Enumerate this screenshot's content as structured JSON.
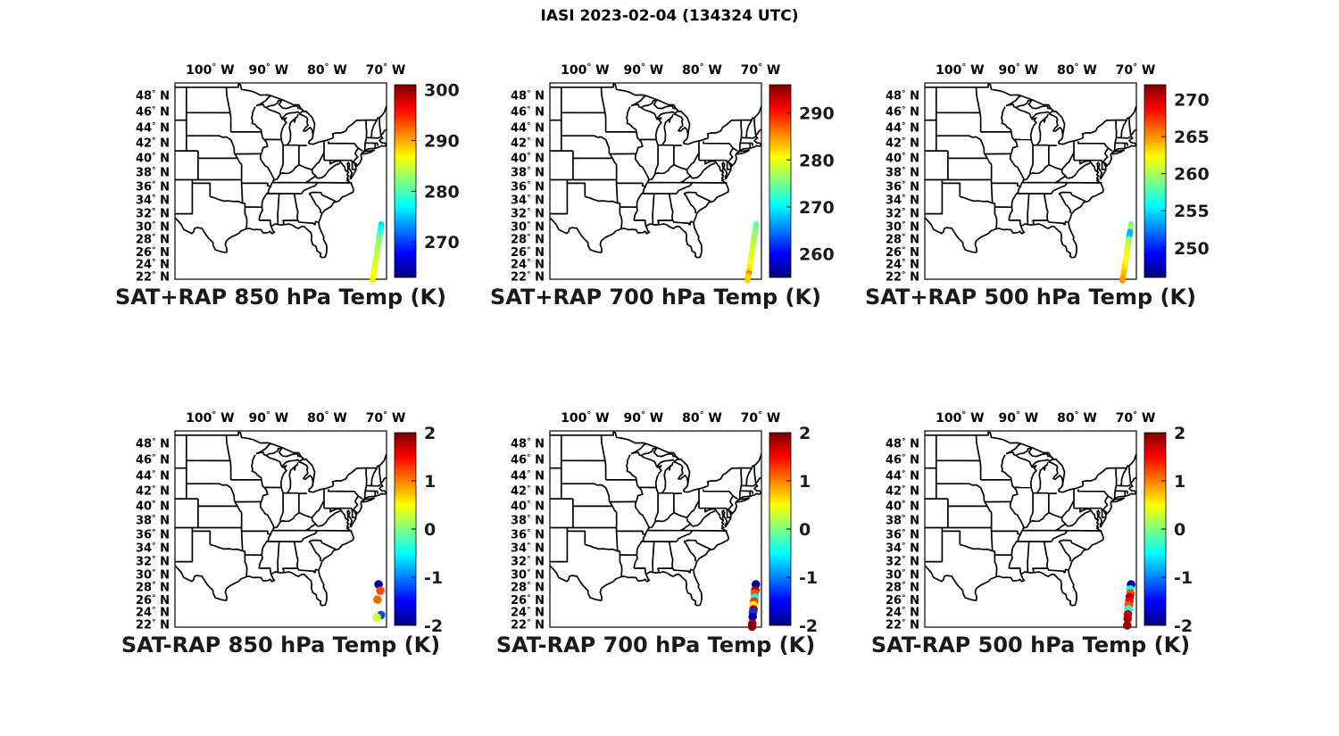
{
  "header": {
    "suptitle": "IASI 2023-02-04 (134324 UTC)"
  },
  "axes": {
    "lon_tick_labels": [
      "100° W",
      "90° W",
      "80° W",
      "70° W"
    ],
    "lon_tick_values": [
      -100,
      -90,
      -80,
      -70
    ],
    "lat_tick_labels": [
      "48° N",
      "46° N",
      "44° N",
      "42° N",
      "40° N",
      "38° N",
      "36° N",
      "34° N",
      "32° N",
      "30° N",
      "28° N",
      "26° N",
      "24° N",
      "22° N"
    ],
    "lat_tick_values": [
      48,
      46,
      44,
      42,
      40,
      38,
      36,
      34,
      32,
      30,
      28,
      26,
      24,
      22
    ],
    "lon_range": [
      -106,
      -69.85
    ],
    "lat_range": [
      21.6,
      49.5
    ]
  },
  "colors": {
    "background": "#ffffff",
    "line": "#000000",
    "colormap": "jet"
  },
  "chart_data": [
    {
      "type": "scatter",
      "title": "SAT+RAP 850 hPa Temp (K)",
      "colorbar": {
        "min": 263,
        "max": 301,
        "ticks": [
          270,
          280,
          290,
          300
        ]
      },
      "points": [
        [
          -70.75,
          30.4,
          276
        ],
        [
          -70.8,
          30.01,
          276.5
        ],
        [
          -70.88,
          29.62,
          277
        ],
        [
          -70.93,
          29.23,
          278.5
        ],
        [
          -71.01,
          28.83,
          280
        ],
        [
          -71.11,
          28.44,
          281
        ],
        [
          -71.14,
          28.05,
          282
        ],
        [
          -71.17,
          27.66,
          282.5
        ],
        [
          -71.29,
          27.27,
          283
        ],
        [
          -71.34,
          26.88,
          283.5
        ],
        [
          -71.37,
          26.48,
          283.5
        ],
        [
          -71.48,
          26.09,
          284
        ],
        [
          -71.53,
          25.7,
          284
        ],
        [
          -71.56,
          25.31,
          284.5
        ],
        [
          -71.68,
          24.92,
          285
        ],
        [
          -71.71,
          24.53,
          285
        ],
        [
          -71.83,
          24.13,
          285.5
        ],
        [
          -71.86,
          23.74,
          285.5
        ],
        [
          -71.89,
          23.35,
          286
        ],
        [
          -71.99,
          22.96,
          286
        ],
        [
          -72.0,
          22.57,
          286.5
        ],
        [
          -72.12,
          22.18,
          287
        ],
        [
          -72.21,
          21.78,
          287
        ],
        [
          -72.23,
          21.39,
          287.5
        ]
      ]
    },
    {
      "type": "scatter",
      "title": "SAT+RAP 700 hPa Temp (K)",
      "colorbar": {
        "min": 255,
        "max": 296,
        "ticks": [
          260,
          270,
          280,
          290
        ]
      },
      "points": [
        [
          -70.75,
          30.4,
          274
        ],
        [
          -70.8,
          30.01,
          274.5
        ],
        [
          -70.88,
          29.62,
          275
        ],
        [
          -70.93,
          29.23,
          275.5
        ],
        [
          -71.01,
          28.83,
          276
        ],
        [
          -71.11,
          28.44,
          276.5
        ],
        [
          -71.14,
          28.05,
          277
        ],
        [
          -71.17,
          27.66,
          277.5
        ],
        [
          -71.29,
          27.27,
          278
        ],
        [
          -71.34,
          26.88,
          278
        ],
        [
          -71.37,
          26.48,
          278.5
        ],
        [
          -71.48,
          26.09,
          279
        ],
        [
          -71.53,
          25.7,
          279
        ],
        [
          -71.56,
          25.31,
          279.5
        ],
        [
          -71.68,
          24.92,
          280
        ],
        [
          -71.71,
          24.53,
          280
        ],
        [
          -71.83,
          24.13,
          280.5
        ],
        [
          -71.86,
          23.74,
          281
        ],
        [
          -71.89,
          23.35,
          281.5
        ],
        [
          -71.99,
          22.96,
          282
        ],
        [
          -72.0,
          22.57,
          286.5
        ],
        [
          -72.12,
          22.18,
          282.5
        ],
        [
          -72.21,
          21.78,
          282
        ],
        [
          -72.23,
          21.39,
          282.5
        ]
      ]
    },
    {
      "type": "scatter",
      "title": "SAT+RAP 500 hPa Temp (K)",
      "colorbar": {
        "min": 246,
        "max": 272,
        "ticks": [
          250,
          255,
          260,
          265,
          270
        ]
      },
      "points": [
        [
          -70.75,
          30.4,
          259
        ],
        [
          -70.8,
          30.01,
          259.5
        ],
        [
          -70.88,
          29.62,
          260
        ],
        [
          -70.93,
          29.23,
          254
        ],
        [
          -71.01,
          28.83,
          253.5
        ],
        [
          -71.11,
          28.44,
          254.5
        ],
        [
          -71.14,
          28.05,
          259
        ],
        [
          -71.17,
          27.66,
          260
        ],
        [
          -71.29,
          27.27,
          260.5
        ],
        [
          -71.34,
          26.88,
          261
        ],
        [
          -71.37,
          26.48,
          261
        ],
        [
          -71.48,
          26.09,
          261.5
        ],
        [
          -71.53,
          25.7,
          261.5
        ],
        [
          -71.56,
          25.31,
          262
        ],
        [
          -71.68,
          24.92,
          262
        ],
        [
          -71.71,
          24.53,
          262.5
        ],
        [
          -71.83,
          24.13,
          262.5
        ],
        [
          -71.86,
          23.74,
          263
        ],
        [
          -71.89,
          23.35,
          263
        ],
        [
          -71.99,
          22.96,
          263.5
        ],
        [
          -72.0,
          22.57,
          264
        ],
        [
          -72.12,
          22.18,
          264
        ],
        [
          -72.21,
          21.78,
          264.5
        ],
        [
          -72.23,
          21.39,
          265
        ]
      ]
    },
    {
      "type": "scatter",
      "title": "SAT-RAP 850 hPa Temp (K)",
      "colorbar": {
        "min": -2,
        "max": 2,
        "ticks": [
          -2,
          -1,
          0,
          1,
          2
        ]
      },
      "points": [
        [
          -71.2,
          28.5,
          -1.9
        ],
        [
          -70.9,
          27.5,
          1.2
        ],
        [
          -71.4,
          26.1,
          1.1
        ],
        [
          -70.8,
          23.6,
          -1.2
        ],
        [
          -71.5,
          23.2,
          0.3
        ]
      ]
    },
    {
      "type": "scatter",
      "title": "SAT-RAP 700 hPa Temp (K)",
      "colorbar": {
        "min": -2,
        "max": 2,
        "ticks": [
          -2,
          -1,
          0,
          1,
          2
        ]
      },
      "points": [
        [
          -70.8,
          28.5,
          -1.9
        ],
        [
          -70.9,
          27.6,
          1.8
        ],
        [
          -71.0,
          27.1,
          1.2
        ],
        [
          -71.0,
          26.4,
          -0.5
        ],
        [
          -71.1,
          25.8,
          1.3
        ],
        [
          -71.2,
          25.2,
          0.6
        ],
        [
          -71.2,
          24.5,
          1.9
        ],
        [
          -71.3,
          24.0,
          -1.3
        ],
        [
          -71.35,
          23.3,
          -1.8
        ],
        [
          -71.4,
          22.2,
          1.9
        ],
        [
          -71.45,
          21.7,
          2.0
        ]
      ]
    },
    {
      "type": "scatter",
      "title": "SAT-RAP 500 hPa Temp (K)",
      "colorbar": {
        "min": -2,
        "max": 2,
        "ticks": [
          -2,
          -1,
          0,
          1,
          2
        ]
      },
      "points": [
        [
          -70.75,
          28.5,
          -1.9
        ],
        [
          -70.9,
          27.7,
          -0.5
        ],
        [
          -70.85,
          27.1,
          1.2
        ],
        [
          -71.0,
          26.5,
          1.8
        ],
        [
          -71.05,
          25.9,
          1.5
        ],
        [
          -71.15,
          25.2,
          1.2
        ],
        [
          -71.2,
          24.5,
          -0.4
        ],
        [
          -71.3,
          23.7,
          1.7
        ],
        [
          -71.35,
          23.0,
          1.8
        ],
        [
          -71.4,
          21.9,
          1.9
        ]
      ]
    }
  ]
}
